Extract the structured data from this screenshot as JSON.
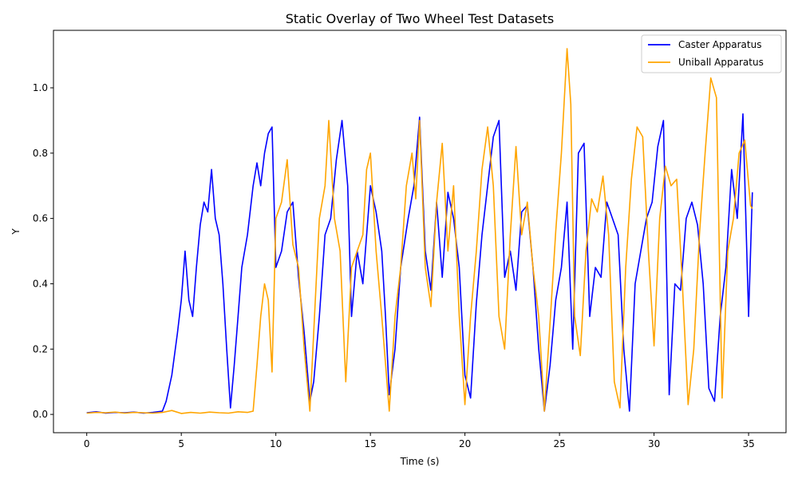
{
  "chart_data": {
    "type": "line",
    "title": "Static Overlay of Two Wheel Test Datasets",
    "xlabel": "Time (s)",
    "ylabel": "Y",
    "xlim": [
      -1.76,
      36.98
    ],
    "ylim": [
      -0.056,
      1.176
    ],
    "xticks": [
      0,
      5,
      10,
      15,
      20,
      25,
      30,
      35
    ],
    "xtick_labels": [
      "0",
      "5",
      "10",
      "15",
      "20",
      "25",
      "30",
      "35"
    ],
    "yticks": [
      0.0,
      0.2,
      0.4,
      0.6,
      0.8,
      1.0
    ],
    "ytick_labels": [
      "0.0",
      "0.2",
      "0.4",
      "0.6",
      "0.8",
      "1.0"
    ],
    "grid": false,
    "legend_position": "top-right",
    "series": [
      {
        "name": "Caster Apparatus",
        "color": "#0000ff",
        "x": [
          0,
          0.5,
          1,
          1.5,
          2,
          2.5,
          3,
          3.5,
          4,
          4.2,
          4.5,
          4.8,
          5,
          5.2,
          5.4,
          5.6,
          5.8,
          6,
          6.2,
          6.4,
          6.6,
          6.8,
          7,
          7.2,
          7.4,
          7.6,
          7.8,
          8,
          8.2,
          8.5,
          8.8,
          9,
          9.2,
          9.4,
          9.6,
          9.8,
          10,
          10.3,
          10.6,
          10.9,
          11.2,
          11.5,
          11.8,
          12,
          12.3,
          12.6,
          12.9,
          13.2,
          13.5,
          13.8,
          14,
          14.3,
          14.6,
          15,
          15.3,
          15.6,
          15.8,
          16,
          16.3,
          16.6,
          17,
          17.3,
          17.6,
          17.9,
          18.2,
          18.5,
          18.8,
          19.1,
          19.4,
          19.7,
          20,
          20.3,
          20.6,
          20.9,
          21.2,
          21.5,
          21.8,
          22.1,
          22.4,
          22.7,
          23,
          23.3,
          23.6,
          23.9,
          24.2,
          24.5,
          24.8,
          25.1,
          25.4,
          25.7,
          26,
          26.3,
          26.6,
          26.9,
          27.2,
          27.5,
          27.8,
          28.1,
          28.4,
          28.7,
          29,
          29.3,
          29.6,
          29.9,
          30.2,
          30.5,
          30.8,
          31.1,
          31.4,
          31.7,
          32,
          32.3,
          32.6,
          32.9,
          33.2,
          33.5,
          33.8,
          34.1,
          34.4,
          34.7,
          35,
          35.2
        ],
        "y": [
          0.005,
          0.008,
          0.004,
          0.006,
          0.005,
          0.007,
          0.004,
          0.006,
          0.01,
          0.04,
          0.12,
          0.25,
          0.35,
          0.5,
          0.35,
          0.3,
          0.45,
          0.58,
          0.65,
          0.62,
          0.75,
          0.6,
          0.55,
          0.4,
          0.2,
          0.02,
          0.15,
          0.3,
          0.45,
          0.55,
          0.7,
          0.77,
          0.7,
          0.8,
          0.86,
          0.88,
          0.45,
          0.5,
          0.62,
          0.65,
          0.42,
          0.25,
          0.04,
          0.1,
          0.3,
          0.55,
          0.6,
          0.78,
          0.9,
          0.7,
          0.3,
          0.5,
          0.4,
          0.7,
          0.62,
          0.5,
          0.3,
          0.06,
          0.2,
          0.45,
          0.6,
          0.7,
          0.91,
          0.5,
          0.38,
          0.65,
          0.42,
          0.68,
          0.6,
          0.45,
          0.12,
          0.05,
          0.34,
          0.55,
          0.7,
          0.85,
          0.9,
          0.42,
          0.5,
          0.38,
          0.62,
          0.64,
          0.45,
          0.2,
          0.01,
          0.15,
          0.35,
          0.45,
          0.65,
          0.2,
          0.8,
          0.83,
          0.3,
          0.45,
          0.42,
          0.65,
          0.6,
          0.55,
          0.2,
          0.01,
          0.4,
          0.5,
          0.6,
          0.65,
          0.82,
          0.9,
          0.06,
          0.4,
          0.38,
          0.6,
          0.65,
          0.58,
          0.4,
          0.08,
          0.04,
          0.3,
          0.45,
          0.75,
          0.6,
          0.92,
          0.3,
          0.68
        ]
      },
      {
        "name": "Uniball Apparatus",
        "color": "#ffa500",
        "x": [
          0,
          0.5,
          1,
          1.5,
          2,
          2.5,
          3,
          3.5,
          4,
          4.5,
          5,
          5.5,
          6,
          6.5,
          7,
          7.5,
          8,
          8.5,
          8.8,
          9,
          9.2,
          9.4,
          9.6,
          9.8,
          10,
          10.3,
          10.6,
          10.9,
          11.2,
          11.5,
          11.8,
          12,
          12.3,
          12.6,
          12.8,
          13.1,
          13.4,
          13.7,
          14,
          14.3,
          14.6,
          14.8,
          15,
          15.3,
          15.6,
          16,
          16.3,
          16.6,
          16.9,
          17.2,
          17.4,
          17.6,
          17.9,
          18.2,
          18.5,
          18.8,
          19.1,
          19.4,
          19.7,
          20,
          20.3,
          20.6,
          20.9,
          21.2,
          21.5,
          21.8,
          22.1,
          22.4,
          22.7,
          23,
          23.3,
          23.6,
          23.9,
          24.2,
          24.5,
          24.8,
          25.1,
          25.4,
          25.6,
          25.8,
          26.1,
          26.4,
          26.7,
          27,
          27.3,
          27.6,
          27.9,
          28.2,
          28.5,
          28.8,
          29.1,
          29.4,
          29.7,
          30,
          30.3,
          30.6,
          30.9,
          31.2,
          31.5,
          31.8,
          32.1,
          32.4,
          32.7,
          33,
          33.3,
          33.6,
          33.9,
          34.2,
          34.5,
          34.8,
          35.1,
          35.2
        ],
        "y": [
          0.004,
          0.006,
          0.005,
          0.007,
          0.004,
          0.006,
          0.005,
          0.004,
          0.006,
          0.012,
          0.003,
          0.006,
          0.004,
          0.007,
          0.005,
          0.004,
          0.008,
          0.006,
          0.01,
          0.15,
          0.3,
          0.4,
          0.35,
          0.13,
          0.6,
          0.65,
          0.78,
          0.52,
          0.45,
          0.2,
          0.01,
          0.25,
          0.6,
          0.7,
          0.9,
          0.6,
          0.5,
          0.1,
          0.45,
          0.5,
          0.55,
          0.75,
          0.8,
          0.5,
          0.3,
          0.01,
          0.3,
          0.45,
          0.7,
          0.8,
          0.66,
          0.9,
          0.45,
          0.33,
          0.65,
          0.83,
          0.5,
          0.7,
          0.3,
          0.03,
          0.3,
          0.5,
          0.75,
          0.88,
          0.7,
          0.3,
          0.2,
          0.55,
          0.82,
          0.55,
          0.65,
          0.45,
          0.3,
          0.01,
          0.28,
          0.56,
          0.8,
          1.12,
          0.95,
          0.3,
          0.18,
          0.5,
          0.66,
          0.62,
          0.73,
          0.55,
          0.1,
          0.02,
          0.45,
          0.72,
          0.88,
          0.85,
          0.5,
          0.21,
          0.6,
          0.76,
          0.7,
          0.72,
          0.4,
          0.03,
          0.2,
          0.55,
          0.8,
          1.03,
          0.97,
          0.05,
          0.5,
          0.6,
          0.8,
          0.84,
          0.64,
          0.63
        ]
      }
    ]
  }
}
